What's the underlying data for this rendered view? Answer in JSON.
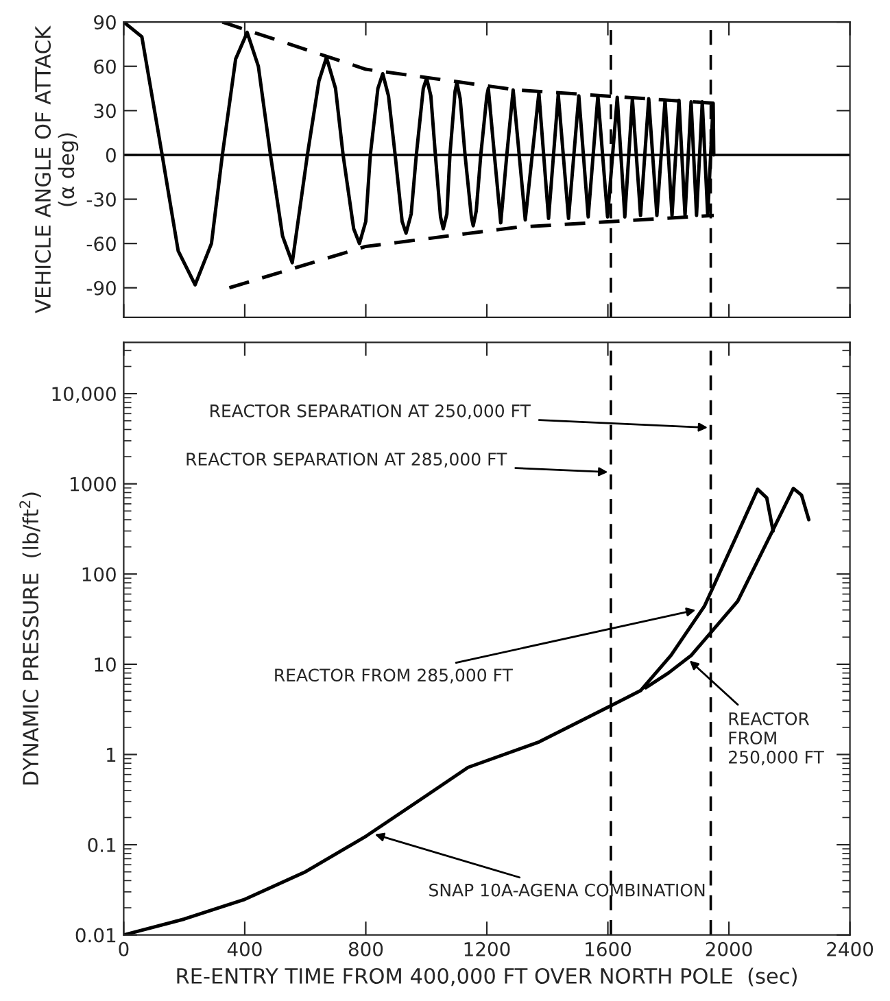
{
  "chart_data": [
    {
      "type": "line",
      "ylabel": "VEHICLE ANGLE OF ATTACK\n(α deg)",
      "xlim": [
        0,
        2400
      ],
      "xticks": [
        0,
        400,
        800,
        1200,
        1600,
        2000,
        2400
      ],
      "ylim": [
        -110,
        90
      ],
      "yticks": [
        -90,
        -60,
        -30,
        0,
        30,
        60,
        90
      ],
      "tick_labels": "y",
      "grid": false,
      "legend": false,
      "ref_lines": [
        {
          "axis": "y",
          "value": 0,
          "line_style": "solid"
        },
        {
          "axis": "x",
          "value": 1610,
          "line_style": "dashed"
        },
        {
          "axis": "x",
          "value": 1940,
          "line_style": "dashed"
        }
      ],
      "series": [
        {
          "color": "#000000",
          "line_style": "solid",
          "x": [
            0,
            60,
            127,
            180,
            236,
            290,
            326,
            370,
            408,
            445,
            485,
            525,
            557,
            607,
            645,
            670,
            700,
            725,
            760,
            779,
            800,
            815,
            840,
            856,
            875,
            897,
            920,
            933,
            950,
            967,
            990,
            1001,
            1015,
            1030,
            1047,
            1056,
            1068,
            1078,
            1095,
            1101,
            1112,
            1128,
            1149,
            1155,
            1165,
            1180,
            1200,
            1205,
            1225,
            1246,
            1266,
            1287,
            1307,
            1327,
            1350,
            1372,
            1404,
            1436,
            1470,
            1504,
            1535,
            1567,
            1599,
            1631,
            1656,
            1681,
            1708,
            1735,
            1762,
            1789,
            1812,
            1835,
            1855,
            1875,
            1893,
            1912,
            1930,
            1948,
            1950
          ],
          "values": [
            90,
            80,
            0,
            -65,
            -88,
            -60,
            0,
            65,
            83,
            60,
            0,
            -55,
            -73,
            0,
            50,
            66,
            45,
            0,
            -50,
            -60,
            -45,
            0,
            45,
            55,
            40,
            0,
            -45,
            -53,
            -40,
            0,
            45,
            52,
            40,
            0,
            -42,
            -50,
            -40,
            0,
            43,
            49,
            38,
            0,
            -42,
            -48,
            -38,
            0,
            40,
            45,
            0,
            -46,
            0,
            44,
            0,
            -44,
            0,
            42,
            -43,
            41,
            -43,
            40,
            -42,
            40,
            -42,
            39,
            -42,
            38,
            -41,
            38,
            -41,
            37,
            -41,
            37,
            -41,
            36,
            -41,
            36,
            -41,
            35,
            0
          ]
        },
        {
          "color": "#000000",
          "line_style": "dashed",
          "x": [
            326,
            800,
            1300,
            1950
          ],
          "values": [
            90,
            58,
            44,
            35
          ]
        },
        {
          "color": "#000000",
          "line_style": "dashed",
          "x": [
            349,
            800,
            1300,
            1950
          ],
          "values": [
            -90,
            -62,
            -49,
            -41
          ]
        }
      ]
    },
    {
      "type": "line",
      "xlabel": "RE-ENTRY TIME FROM 400,000 FT OVER NORTH POLE  (sec)",
      "ylabel": "DYNAMIC PRESSURE  (lb/ft$^{2}$)",
      "log": "y",
      "xlim": [
        0,
        2400
      ],
      "xticks": [
        0,
        400,
        800,
        1200,
        1600,
        2000,
        2400
      ],
      "ylim": [
        0.01,
        37000
      ],
      "yticks": [
        0.01,
        0.1,
        1,
        10,
        100,
        1000,
        {
          "value": 10000,
          "label": "10,000"
        }
      ],
      "grid": false,
      "legend": false,
      "ref_lines": [
        {
          "axis": "x",
          "value": 1610,
          "line_style": "dashed"
        },
        {
          "axis": "x",
          "value": 1940,
          "line_style": "dashed"
        }
      ],
      "annotations": [
        {
          "text": "REACTOR SEPARATION AT 250,000 FT",
          "x": 1930,
          "y": 4200
        },
        {
          "text": "REACTOR SEPARATION AT 285,000 FT",
          "x": 1600,
          "y": 1350
        },
        {
          "text": "REACTOR FROM 285,000 FT",
          "x": 1890,
          "y": 40
        },
        {
          "text": "REACTOR\nFROM\n250,000 FT",
          "x": 1870,
          "y": 11
        },
        {
          "text": "SNAP 10A-AGENA COMBINATION",
          "x": 830,
          "y": 0.13
        }
      ],
      "series": [
        {
          "color": "#000000",
          "line_style": "solid",
          "x": [
            0,
            200,
            396,
            600,
            802,
            1000,
            1138,
            1373,
            1608,
            1708,
            1809,
            1919,
            2028,
            2095,
            2125,
            2146
          ],
          "values": [
            0.01,
            0.015,
            0.0245,
            0.05,
            0.125,
            0.35,
            0.72,
            1.38,
            3.44,
            5.1,
            12.6,
            44,
            277,
            870,
            700,
            300
          ]
        },
        {
          "color": "#000000",
          "line_style": "solid",
          "x": [
            1725,
            1800,
            1876,
            2029,
            2146,
            2213,
            2240,
            2264
          ],
          "values": [
            5.5,
            8,
            12.6,
            50,
            310,
            890,
            750,
            400
          ]
        }
      ]
    }
  ]
}
